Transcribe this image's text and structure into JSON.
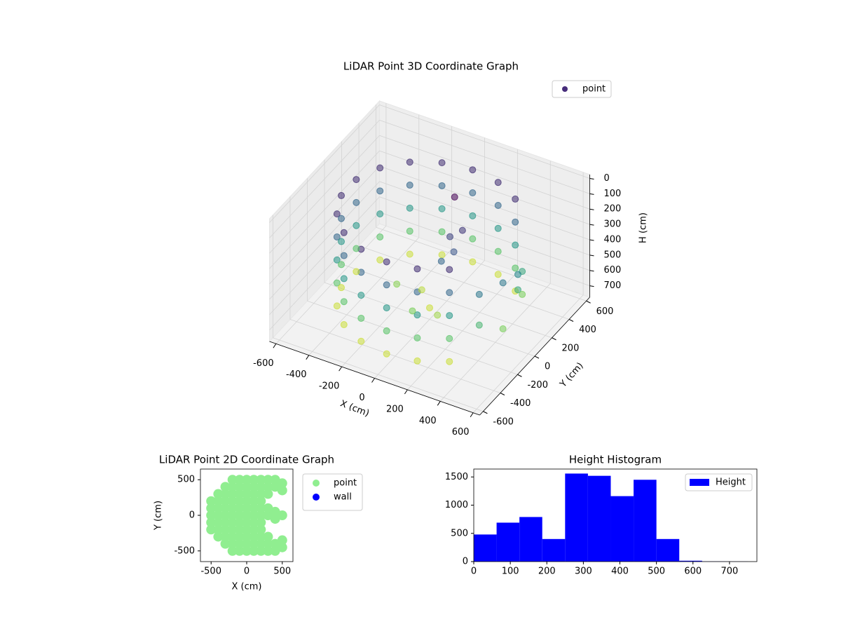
{
  "chart_data": [
    {
      "type": "scatter3d",
      "title": "LiDAR Point 3D Coordinate Graph",
      "xlabel": "X (cm)",
      "ylabel": "Y (cm)",
      "zlabel": "H (cm)",
      "cmap": "viridis",
      "clim": [
        0,
        760
      ],
      "legend": "upper right",
      "xlim": [
        -640,
        640
      ],
      "ylim": [
        -640,
        640
      ],
      "zlim": [
        775,
        -25
      ],
      "xticks": [
        -600,
        -400,
        -200,
        0,
        200,
        400,
        600
      ],
      "yticks": [
        -600,
        -400,
        -200,
        0,
        200,
        400,
        600
      ],
      "zticks": [
        0,
        100,
        200,
        300,
        400,
        500,
        600,
        700
      ],
      "series": [
        {
          "name": "point",
          "color": "#472d7b",
          "x": [
            0,
            -171,
            -321,
            -433,
            -492,
            -492,
            -433,
            -321,
            -171,
            0,
            171,
            321,
            171,
            321,
            0,
            -171,
            -321,
            -433,
            -492,
            -492,
            -433,
            -321,
            -171,
            0,
            171,
            321,
            171,
            321,
            0,
            -171,
            -321,
            -433,
            -492,
            -492,
            -433,
            -321,
            -171,
            0,
            171,
            321,
            171,
            321,
            0,
            -171,
            -321,
            -433,
            -492,
            -492,
            -433,
            -321,
            -171,
            0,
            171,
            321,
            171,
            321,
            0,
            -171,
            -321,
            -433,
            -492,
            -492,
            -433,
            -321,
            -171,
            0,
            171,
            321,
            171,
            321,
            433,
            492,
            492,
            433,
            492,
            433,
            433,
            492,
            0,
            100,
            -100,
            -200,
            0,
            150,
            200,
            150,
            200,
            100
          ],
          "y": [
            500,
            470,
            383,
            250,
            87,
            -87,
            -250,
            -383,
            -470,
            -500,
            -470,
            -383,
            470,
            383,
            500,
            470,
            383,
            250,
            87,
            -87,
            -250,
            -383,
            -470,
            -500,
            -470,
            -383,
            470,
            383,
            500,
            470,
            383,
            250,
            87,
            -87,
            -250,
            -383,
            -470,
            -500,
            -470,
            -383,
            470,
            383,
            500,
            470,
            383,
            250,
            87,
            -87,
            -250,
            -383,
            -470,
            -500,
            -470,
            -383,
            470,
            383,
            500,
            470,
            383,
            250,
            87,
            -87,
            -250,
            -383,
            -470,
            -500,
            -470,
            -383,
            470,
            383,
            -250,
            -87,
            87,
            250,
            -87,
            250,
            -250,
            87,
            0,
            -100,
            100,
            0,
            -200,
            -50,
            -100,
            -150,
            0,
            100
          ],
          "h": [
            100,
            100,
            100,
            100,
            100,
            100,
            100,
            100,
            100,
            100,
            100,
            100,
            100,
            100,
            250,
            250,
            250,
            250,
            250,
            250,
            250,
            250,
            250,
            250,
            250,
            250,
            250,
            250,
            400,
            400,
            400,
            400,
            400,
            400,
            400,
            400,
            400,
            400,
            400,
            400,
            400,
            400,
            550,
            550,
            550,
            550,
            550,
            550,
            550,
            550,
            550,
            550,
            550,
            550,
            550,
            550,
            700,
            700,
            700,
            700,
            700,
            700,
            700,
            700,
            700,
            700,
            700,
            700,
            700,
            700,
            300,
            300,
            450,
            450,
            600,
            600,
            500,
            350,
            700,
            650,
            680,
            620,
            600,
            150,
            200,
            250,
            120,
            0
          ]
        }
      ]
    },
    {
      "type": "scatter",
      "title": "LiDAR Point 2D Coordinate Graph",
      "xlabel": "X (cm)",
      "ylabel": "Y (cm)",
      "legend": "outside right",
      "xlim": [
        -650,
        650
      ],
      "ylim": [
        -650,
        650
      ],
      "xticks": [
        -500,
        0,
        500
      ],
      "yticks": [
        -500,
        0,
        500
      ],
      "series": [
        {
          "name": "point",
          "color": "#90ee90",
          "x": [
            -500,
            -500,
            -500,
            -500,
            -500,
            -400,
            -400,
            -400,
            -400,
            -400,
            -400,
            -400,
            -300,
            -300,
            -300,
            -300,
            -300,
            -300,
            -300,
            -300,
            -300,
            -200,
            -200,
            -200,
            -200,
            -200,
            -200,
            -200,
            -200,
            -200,
            -200,
            -200,
            -100,
            -100,
            -100,
            -100,
            -100,
            -100,
            -100,
            -100,
            -100,
            -100,
            -100,
            0,
            0,
            0,
            0,
            0,
            0,
            0,
            0,
            0,
            0,
            0,
            100,
            100,
            100,
            100,
            100,
            100,
            100,
            100,
            100,
            100,
            100,
            200,
            200,
            200,
            200,
            200,
            200,
            200,
            200,
            200,
            200,
            200,
            300,
            300,
            300,
            300,
            300,
            300,
            300,
            300,
            400,
            400,
            400,
            400,
            400,
            400,
            500,
            500,
            500,
            500,
            500
          ],
          "y": [
            -200,
            -100,
            0,
            100,
            200,
            -300,
            -200,
            -100,
            0,
            100,
            200,
            300,
            -400,
            -300,
            -200,
            -100,
            0,
            100,
            200,
            300,
            400,
            -500,
            -400,
            -300,
            -200,
            -100,
            0,
            100,
            200,
            300,
            400,
            500,
            -500,
            -400,
            -300,
            -200,
            -100,
            0,
            100,
            200,
            300,
            400,
            500,
            -500,
            -400,
            -300,
            -200,
            -100,
            0,
            100,
            200,
            300,
            400,
            500,
            -500,
            -400,
            -300,
            -200,
            -100,
            0,
            100,
            200,
            300,
            400,
            500,
            -500,
            -400,
            -300,
            -200,
            -100,
            0,
            100,
            200,
            300,
            400,
            500,
            -500,
            -400,
            -300,
            0,
            100,
            300,
            400,
            500,
            -500,
            -400,
            -50,
            50,
            400,
            500,
            -450,
            -350,
            0,
            350,
            450
          ]
        },
        {
          "name": "wall",
          "color": "#0000ff",
          "x": [],
          "y": []
        }
      ]
    },
    {
      "type": "histogram",
      "title": "Height Histogram",
      "legend": "upper right",
      "xlim": [
        0,
        775
      ],
      "ylim": [
        0,
        1640
      ],
      "xticks": [
        0,
        100,
        200,
        300,
        400,
        500,
        600,
        700
      ],
      "yticks": [
        0,
        500,
        1000,
        1500
      ],
      "bins": [
        0,
        62.5,
        125,
        187.5,
        250,
        312.5,
        375,
        437.5,
        500,
        562.5,
        625,
        687.5,
        750
      ],
      "series": [
        {
          "name": "Height",
          "color": "#0000ff",
          "values": [
            480,
            690,
            790,
            400,
            1560,
            1520,
            1160,
            1450,
            400,
            15,
            3,
            2
          ]
        }
      ]
    }
  ]
}
